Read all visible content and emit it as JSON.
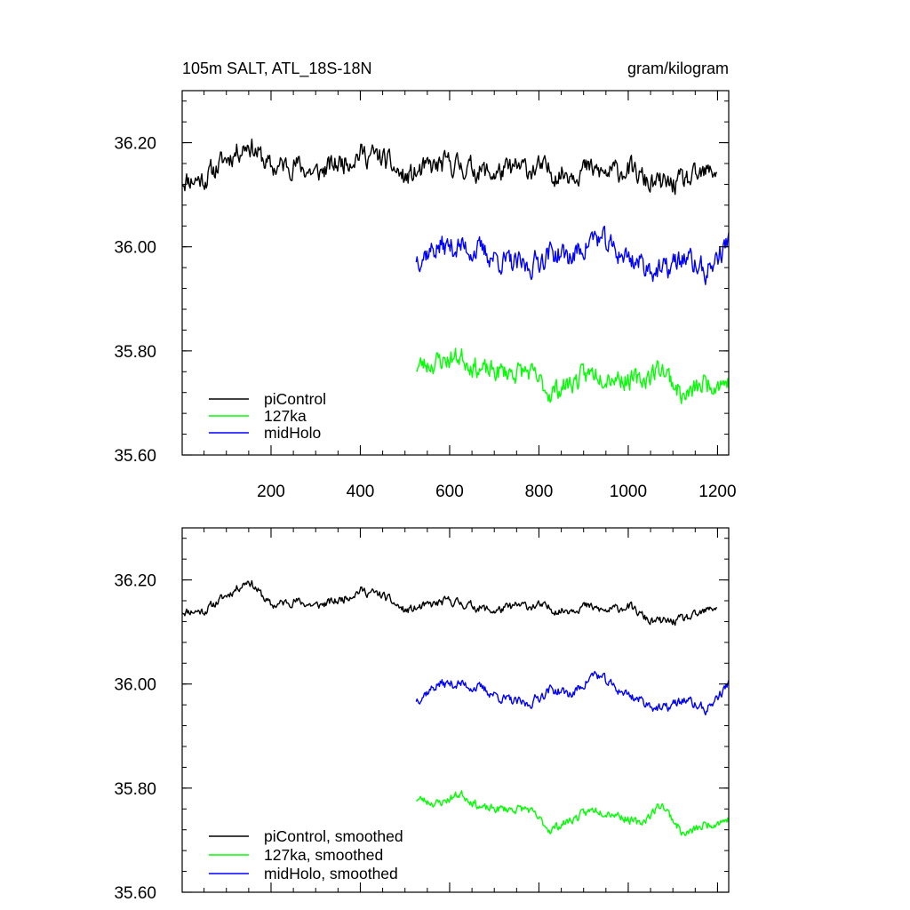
{
  "chart_data": [
    {
      "type": "line",
      "title": "105m SALT, ATL_18S-18N",
      "units": "gram/kilogram",
      "xlabel": "",
      "ylabel": "",
      "xlim": [
        1,
        1225
      ],
      "ylim": [
        35.6,
        36.3
      ],
      "x_ticks": [
        200,
        400,
        600,
        800,
        1000,
        1200
      ],
      "x_tick_labels": [
        "200",
        "400",
        "600",
        "800",
        "1000",
        "1200"
      ],
      "y_ticks": [
        35.6,
        35.8,
        36.0,
        36.2
      ],
      "y_tick_labels": [
        "35.60",
        "35.80",
        "36.00",
        "36.20"
      ],
      "grid": false,
      "legend": "bottom-left",
      "series": [
        {
          "name": "piControl",
          "color": "#000000",
          "x_start": 1,
          "x_end": 1200,
          "x": [
            1,
            50,
            100,
            150,
            200,
            250,
            300,
            350,
            400,
            450,
            500,
            550,
            600,
            650,
            700,
            750,
            800,
            850,
            900,
            950,
            1000,
            1050,
            1100,
            1150,
            1200
          ],
          "values": [
            36.13,
            36.13,
            36.17,
            36.2,
            36.15,
            36.16,
            36.14,
            36.16,
            36.18,
            36.17,
            36.13,
            36.15,
            36.16,
            36.15,
            36.14,
            36.15,
            36.15,
            36.14,
            36.15,
            36.14,
            36.15,
            36.12,
            36.12,
            36.13,
            36.15
          ],
          "noise": 0.018,
          "seed": 11
        },
        {
          "name": "127ka",
          "color": "#00ff00",
          "x_start": 525,
          "x_end": 1225,
          "x": [
            525,
            575,
            625,
            675,
            725,
            775,
            825,
            875,
            925,
            975,
            1025,
            1075,
            1125,
            1175,
            1225
          ],
          "values": [
            35.77,
            35.78,
            35.79,
            35.76,
            35.76,
            35.76,
            35.72,
            35.74,
            35.76,
            35.75,
            35.74,
            35.77,
            35.71,
            35.74,
            35.74
          ],
          "noise": 0.017,
          "seed": 23
        },
        {
          "name": "midHolo",
          "color": "#0000ff",
          "x_start": 525,
          "x_end": 1225,
          "x": [
            525,
            575,
            625,
            675,
            725,
            775,
            825,
            875,
            925,
            975,
            1025,
            1075,
            1125,
            1175,
            1225
          ],
          "values": [
            35.98,
            36.0,
            36.0,
            35.99,
            35.97,
            35.96,
            35.99,
            35.98,
            36.02,
            35.99,
            35.97,
            35.95,
            35.98,
            35.95,
            36.01
          ],
          "noise": 0.019,
          "seed": 37
        }
      ]
    },
    {
      "type": "line",
      "title": "",
      "xlabel": "",
      "ylabel": "",
      "xlim": [
        1,
        1225
      ],
      "ylim": [
        35.6,
        36.3
      ],
      "x_ticks": [
        200,
        400,
        600,
        800,
        1000,
        1200
      ],
      "y_ticks": [
        35.6,
        35.8,
        36.0,
        36.2
      ],
      "y_tick_labels": [
        "35.60",
        "35.80",
        "36.00",
        "36.20"
      ],
      "grid": false,
      "legend": "bottom-left",
      "series": [
        {
          "name": "piControl, smoothed",
          "color": "#000000",
          "x_start": 1,
          "x_end": 1200,
          "x": [
            1,
            50,
            100,
            150,
            200,
            250,
            300,
            350,
            400,
            450,
            500,
            550,
            600,
            650,
            700,
            750,
            800,
            850,
            900,
            950,
            1000,
            1050,
            1100,
            1150,
            1200
          ],
          "values": [
            36.14,
            36.14,
            36.17,
            36.2,
            36.15,
            36.16,
            36.15,
            36.16,
            36.18,
            36.17,
            36.14,
            36.15,
            36.16,
            36.15,
            36.14,
            36.15,
            36.15,
            36.14,
            36.15,
            36.14,
            36.15,
            36.12,
            36.12,
            36.13,
            36.15
          ],
          "noise": 0.007,
          "seed": 11
        },
        {
          "name": "127ka, smoothed",
          "color": "#00ff00",
          "x_start": 525,
          "x_end": 1225,
          "x": [
            525,
            575,
            625,
            675,
            725,
            775,
            825,
            875,
            925,
            975,
            1025,
            1075,
            1125,
            1175,
            1225
          ],
          "values": [
            35.78,
            35.77,
            35.79,
            35.76,
            35.76,
            35.76,
            35.72,
            35.74,
            35.76,
            35.75,
            35.73,
            35.77,
            35.71,
            35.73,
            35.74
          ],
          "noise": 0.007,
          "seed": 23
        },
        {
          "name": "midHolo, smoothed",
          "color": "#0000ff",
          "x_start": 525,
          "x_end": 1225,
          "x": [
            525,
            575,
            625,
            675,
            725,
            775,
            825,
            875,
            925,
            975,
            1025,
            1075,
            1125,
            1175,
            1225
          ],
          "values": [
            35.97,
            36.0,
            36.0,
            35.99,
            35.97,
            35.96,
            35.99,
            35.98,
            36.02,
            35.99,
            35.97,
            35.95,
            35.97,
            35.95,
            36.0
          ],
          "noise": 0.008,
          "seed": 37
        }
      ]
    }
  ]
}
